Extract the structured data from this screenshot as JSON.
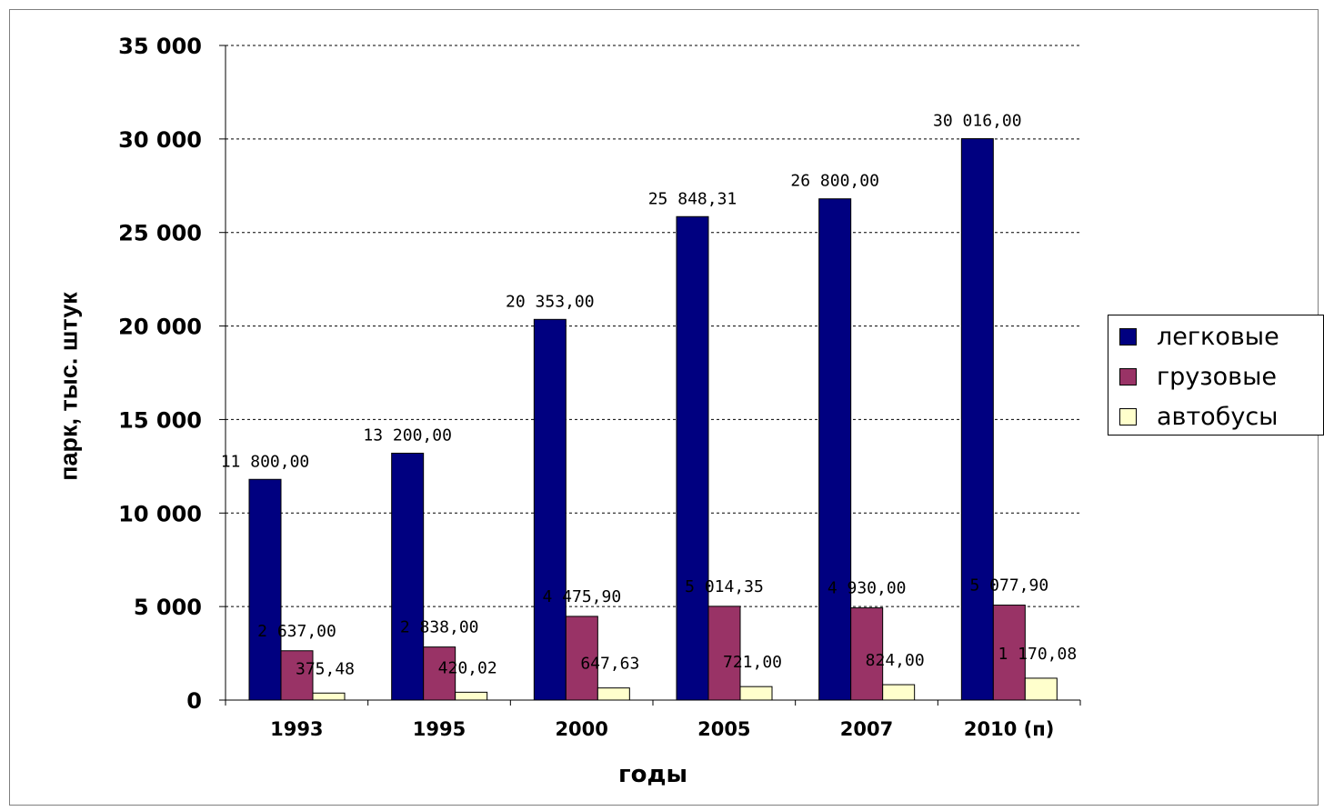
{
  "chart_data": {
    "type": "bar",
    "title": "",
    "xlabel": "годы",
    "ylabel": "парк, тыс. штук",
    "categories": [
      "1993",
      "1995",
      "2000",
      "2005",
      "2007",
      "2010 (п)"
    ],
    "ylim": [
      0,
      35000
    ],
    "yticks": [
      "0",
      "5 000",
      "10 000",
      "15 000",
      "20 000",
      "25 000",
      "30 000",
      "35 000"
    ],
    "grid": true,
    "legend_position": "right",
    "series": [
      {
        "name": "легковые",
        "color": "#000080",
        "values": [
          11800.0,
          13200.0,
          20353.0,
          25848.31,
          26800.0,
          30016.0
        ],
        "labels": [
          "11 800,00",
          "13 200,00",
          "20 353,00",
          "25 848,31",
          "26 800,00",
          "30 016,00"
        ]
      },
      {
        "name": "грузовые",
        "color": "#993366",
        "values": [
          2637.0,
          2838.0,
          4475.9,
          5014.35,
          4930.0,
          5077.9
        ],
        "labels": [
          "2 637,00",
          "2 838,00",
          "4 475,90",
          "5 014,35",
          "4 930,00",
          "5 077,90"
        ]
      },
      {
        "name": "автобусы",
        "color": "#FFFFCC",
        "values": [
          375.48,
          420.02,
          647.63,
          721.0,
          824.0,
          1170.08
        ],
        "labels": [
          "375,48",
          "420,02",
          "647,63",
          "721,00",
          "824,00",
          "1 170,08"
        ]
      }
    ]
  }
}
